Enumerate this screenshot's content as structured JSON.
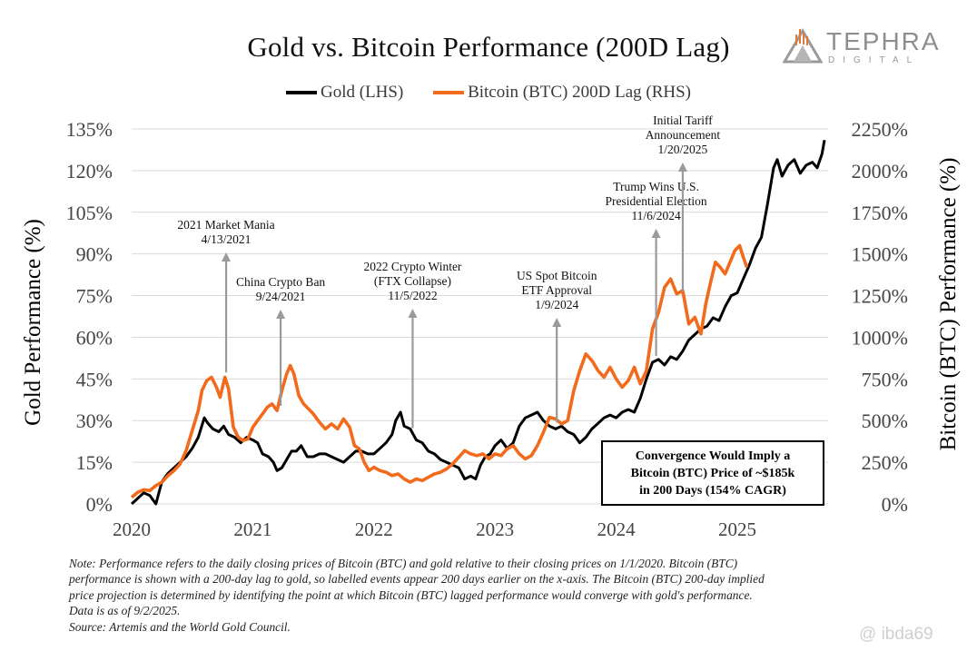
{
  "chart_data": {
    "type": "line",
    "title": "Gold vs. Bitcoin Performance (200D Lag)",
    "y_left": {
      "label": "Gold Performance (%)",
      "ticks": [
        "0%",
        "15%",
        "30%",
        "45%",
        "60%",
        "75%",
        "90%",
        "105%",
        "120%",
        "135%"
      ],
      "range": [
        0,
        135
      ]
    },
    "y_right": {
      "label": "Bitcoin (BTC) Performance (%)",
      "ticks": [
        "0%",
        "250%",
        "500%",
        "750%",
        "1000%",
        "1250%",
        "1500%",
        "1750%",
        "2000%",
        "2250%"
      ],
      "range": [
        0,
        2250
      ]
    },
    "x_axis": {
      "ticks": [
        "2020",
        "2021",
        "2022",
        "2023",
        "2024",
        "2025"
      ],
      "range": [
        2020.0,
        2025.75
      ]
    },
    "grid": "horizontal",
    "legend_position": "top-center",
    "series": [
      {
        "name": "Gold (LHS)",
        "axis": "left",
        "color": "#000000",
        "points": [
          [
            2020.0,
            0
          ],
          [
            2020.05,
            2
          ],
          [
            2020.1,
            4
          ],
          [
            2020.15,
            3
          ],
          [
            2020.2,
            0
          ],
          [
            2020.25,
            8
          ],
          [
            2020.3,
            11
          ],
          [
            2020.35,
            13
          ],
          [
            2020.4,
            15
          ],
          [
            2020.45,
            17
          ],
          [
            2020.5,
            20
          ],
          [
            2020.55,
            24
          ],
          [
            2020.6,
            31
          ],
          [
            2020.63,
            29
          ],
          [
            2020.67,
            27
          ],
          [
            2020.72,
            26
          ],
          [
            2020.76,
            28
          ],
          [
            2020.8,
            25
          ],
          [
            2020.85,
            24
          ],
          [
            2020.9,
            22
          ],
          [
            2020.95,
            24
          ],
          [
            2021.0,
            23
          ],
          [
            2021.04,
            22
          ],
          [
            2021.08,
            18
          ],
          [
            2021.13,
            17
          ],
          [
            2021.17,
            15
          ],
          [
            2021.2,
            12
          ],
          [
            2021.24,
            13
          ],
          [
            2021.28,
            16
          ],
          [
            2021.32,
            19
          ],
          [
            2021.36,
            19
          ],
          [
            2021.4,
            21
          ],
          [
            2021.45,
            17
          ],
          [
            2021.5,
            17
          ],
          [
            2021.55,
            18
          ],
          [
            2021.6,
            18
          ],
          [
            2021.65,
            17
          ],
          [
            2021.7,
            16
          ],
          [
            2021.75,
            15
          ],
          [
            2021.8,
            17
          ],
          [
            2021.85,
            19
          ],
          [
            2021.9,
            19
          ],
          [
            2021.95,
            18
          ],
          [
            2022.0,
            18
          ],
          [
            2022.05,
            20
          ],
          [
            2022.1,
            22
          ],
          [
            2022.15,
            25
          ],
          [
            2022.18,
            30
          ],
          [
            2022.22,
            33
          ],
          [
            2022.25,
            28
          ],
          [
            2022.3,
            27
          ],
          [
            2022.35,
            23
          ],
          [
            2022.4,
            22
          ],
          [
            2022.45,
            19
          ],
          [
            2022.5,
            18
          ],
          [
            2022.55,
            16
          ],
          [
            2022.6,
            15
          ],
          [
            2022.65,
            14
          ],
          [
            2022.7,
            13
          ],
          [
            2022.75,
            9
          ],
          [
            2022.8,
            10
          ],
          [
            2022.84,
            9
          ],
          [
            2022.88,
            14
          ],
          [
            2022.92,
            17
          ],
          [
            2022.96,
            18
          ],
          [
            2023.0,
            21
          ],
          [
            2023.05,
            23
          ],
          [
            2023.1,
            20
          ],
          [
            2023.15,
            22
          ],
          [
            2023.2,
            28
          ],
          [
            2023.25,
            31
          ],
          [
            2023.3,
            32
          ],
          [
            2023.35,
            33
          ],
          [
            2023.4,
            30
          ],
          [
            2023.45,
            28
          ],
          [
            2023.5,
            27
          ],
          [
            2023.55,
            28
          ],
          [
            2023.6,
            26
          ],
          [
            2023.65,
            25
          ],
          [
            2023.7,
            22
          ],
          [
            2023.75,
            24
          ],
          [
            2023.8,
            27
          ],
          [
            2023.85,
            29
          ],
          [
            2023.9,
            31
          ],
          [
            2023.95,
            32
          ],
          [
            2024.0,
            31
          ],
          [
            2024.05,
            33
          ],
          [
            2024.1,
            34
          ],
          [
            2024.15,
            33
          ],
          [
            2024.2,
            38
          ],
          [
            2024.25,
            45
          ],
          [
            2024.3,
            51
          ],
          [
            2024.35,
            52
          ],
          [
            2024.4,
            50
          ],
          [
            2024.45,
            53
          ],
          [
            2024.5,
            52
          ],
          [
            2024.55,
            55
          ],
          [
            2024.6,
            59
          ],
          [
            2024.65,
            61
          ],
          [
            2024.7,
            63
          ],
          [
            2024.75,
            64
          ],
          [
            2024.8,
            67
          ],
          [
            2024.85,
            66
          ],
          [
            2024.9,
            71
          ],
          [
            2024.95,
            75
          ],
          [
            2025.0,
            76
          ],
          [
            2025.05,
            81
          ],
          [
            2025.1,
            86
          ],
          [
            2025.15,
            92
          ],
          [
            2025.2,
            96
          ],
          [
            2025.25,
            108
          ],
          [
            2025.3,
            121
          ],
          [
            2025.33,
            124
          ],
          [
            2025.37,
            118
          ],
          [
            2025.42,
            122
          ],
          [
            2025.47,
            124
          ],
          [
            2025.52,
            119
          ],
          [
            2025.57,
            122
          ],
          [
            2025.62,
            123
          ],
          [
            2025.66,
            121
          ],
          [
            2025.7,
            126
          ],
          [
            2025.72,
            131
          ]
        ]
      },
      {
        "name": "Bitcoin (BTC) 200D Lag (RHS)",
        "axis": "right",
        "color": "#f26a1b",
        "points": [
          [
            2020.0,
            40
          ],
          [
            2020.05,
            70
          ],
          [
            2020.1,
            85
          ],
          [
            2020.15,
            80
          ],
          [
            2020.2,
            110
          ],
          [
            2020.25,
            130
          ],
          [
            2020.3,
            170
          ],
          [
            2020.35,
            200
          ],
          [
            2020.4,
            240
          ],
          [
            2020.45,
            320
          ],
          [
            2020.5,
            440
          ],
          [
            2020.55,
            560
          ],
          [
            2020.58,
            680
          ],
          [
            2020.62,
            740
          ],
          [
            2020.66,
            760
          ],
          [
            2020.7,
            700
          ],
          [
            2020.73,
            640
          ],
          [
            2020.77,
            760
          ],
          [
            2020.8,
            690
          ],
          [
            2020.84,
            460
          ],
          [
            2020.88,
            400
          ],
          [
            2020.92,
            380
          ],
          [
            2020.96,
            390
          ],
          [
            2021.0,
            460
          ],
          [
            2021.04,
            500
          ],
          [
            2021.08,
            540
          ],
          [
            2021.12,
            580
          ],
          [
            2021.16,
            600
          ],
          [
            2021.2,
            560
          ],
          [
            2021.24,
            680
          ],
          [
            2021.28,
            780
          ],
          [
            2021.31,
            830
          ],
          [
            2021.34,
            780
          ],
          [
            2021.38,
            650
          ],
          [
            2021.42,
            600
          ],
          [
            2021.46,
            570
          ],
          [
            2021.5,
            540
          ],
          [
            2021.55,
            490
          ],
          [
            2021.6,
            450
          ],
          [
            2021.65,
            480
          ],
          [
            2021.7,
            450
          ],
          [
            2021.75,
            510
          ],
          [
            2021.8,
            460
          ],
          [
            2021.84,
            350
          ],
          [
            2021.88,
            330
          ],
          [
            2021.92,
            250
          ],
          [
            2021.96,
            200
          ],
          [
            2022.0,
            220
          ],
          [
            2022.05,
            200
          ],
          [
            2022.1,
            190
          ],
          [
            2022.15,
            170
          ],
          [
            2022.2,
            180
          ],
          [
            2022.25,
            150
          ],
          [
            2022.3,
            130
          ],
          [
            2022.35,
            150
          ],
          [
            2022.4,
            140
          ],
          [
            2022.45,
            160
          ],
          [
            2022.5,
            180
          ],
          [
            2022.55,
            190
          ],
          [
            2022.6,
            210
          ],
          [
            2022.65,
            240
          ],
          [
            2022.7,
            280
          ],
          [
            2022.75,
            320
          ],
          [
            2022.8,
            300
          ],
          [
            2022.85,
            290
          ],
          [
            2022.9,
            300
          ],
          [
            2022.95,
            270
          ],
          [
            2023.0,
            300
          ],
          [
            2023.05,
            290
          ],
          [
            2023.1,
            330
          ],
          [
            2023.15,
            350
          ],
          [
            2023.2,
            300
          ],
          [
            2023.25,
            270
          ],
          [
            2023.3,
            290
          ],
          [
            2023.35,
            350
          ],
          [
            2023.4,
            430
          ],
          [
            2023.45,
            520
          ],
          [
            2023.5,
            510
          ],
          [
            2023.55,
            480
          ],
          [
            2023.6,
            500
          ],
          [
            2023.65,
            680
          ],
          [
            2023.7,
            800
          ],
          [
            2023.75,
            900
          ],
          [
            2023.8,
            860
          ],
          [
            2023.85,
            800
          ],
          [
            2023.9,
            760
          ],
          [
            2023.95,
            820
          ],
          [
            2024.0,
            750
          ],
          [
            2024.05,
            700
          ],
          [
            2024.1,
            740
          ],
          [
            2024.15,
            820
          ],
          [
            2024.2,
            720
          ],
          [
            2024.25,
            800
          ],
          [
            2024.3,
            1050
          ],
          [
            2024.35,
            1150
          ],
          [
            2024.4,
            1300
          ],
          [
            2024.45,
            1350
          ],
          [
            2024.5,
            1260
          ],
          [
            2024.55,
            1280
          ],
          [
            2024.6,
            1080
          ],
          [
            2024.65,
            1120
          ],
          [
            2024.7,
            1020
          ],
          [
            2024.74,
            1200
          ],
          [
            2024.78,
            1330
          ],
          [
            2024.82,
            1450
          ],
          [
            2024.86,
            1420
          ],
          [
            2024.9,
            1380
          ],
          [
            2024.94,
            1450
          ],
          [
            2024.98,
            1520
          ],
          [
            2025.02,
            1550
          ],
          [
            2025.05,
            1480
          ],
          [
            2025.08,
            1420
          ]
        ]
      }
    ],
    "annotations": [
      {
        "x": 2020.78,
        "y_left": 46,
        "lines": [
          "2021 Market Mania",
          "4/13/2021"
        ]
      },
      {
        "x": 2021.23,
        "y_left": 34,
        "lines": [
          "China Crypto Ban",
          "9/24/2021"
        ]
      },
      {
        "x": 2022.32,
        "y_left": 26,
        "lines": [
          "2022 Crypto Winter",
          "(FTX Collapse)",
          "11/5/2022"
        ]
      },
      {
        "x": 2023.51,
        "y_left": 28,
        "lines": [
          "US Spot Bitcoin",
          "ETF Approval",
          "1/9/2024"
        ]
      },
      {
        "x": 2024.33,
        "y_left": 52,
        "lines": [
          "Trump Wins U.S.",
          "Presidential Election",
          "11/6/2024"
        ]
      },
      {
        "x": 2024.55,
        "y_left": 75,
        "lines": [
          "Initial Tariff",
          "Announcement",
          "1/20/2025"
        ]
      }
    ],
    "callout": {
      "lines": [
        "Convergence Would Imply a",
        "Bitcoin (BTC) Price of ~$185k",
        "in 200 Days (154% CAGR)"
      ]
    }
  },
  "logo": {
    "word": "TEPHRA",
    "sub": "DIGITAL"
  },
  "notes": [
    "Note: Performance refers to the daily closing prices of Bitcoin (BTC) and gold relative to their closing prices on 1/1/2020. Bitcoin (BTC)",
    "performance is shown with a 200-day lag to gold, so labelled events appear 200 days earlier on the x-axis. The Bitcoin (BTC) 200-day implied",
    "price projection is determined by identifying the point at which Bitcoin (BTC) lagged performance would converge with gold's performance.",
    "Data is as of 9/2/2025.",
    "Source: Artemis and the World Gold Council."
  ],
  "watermark": "@ ibda69"
}
